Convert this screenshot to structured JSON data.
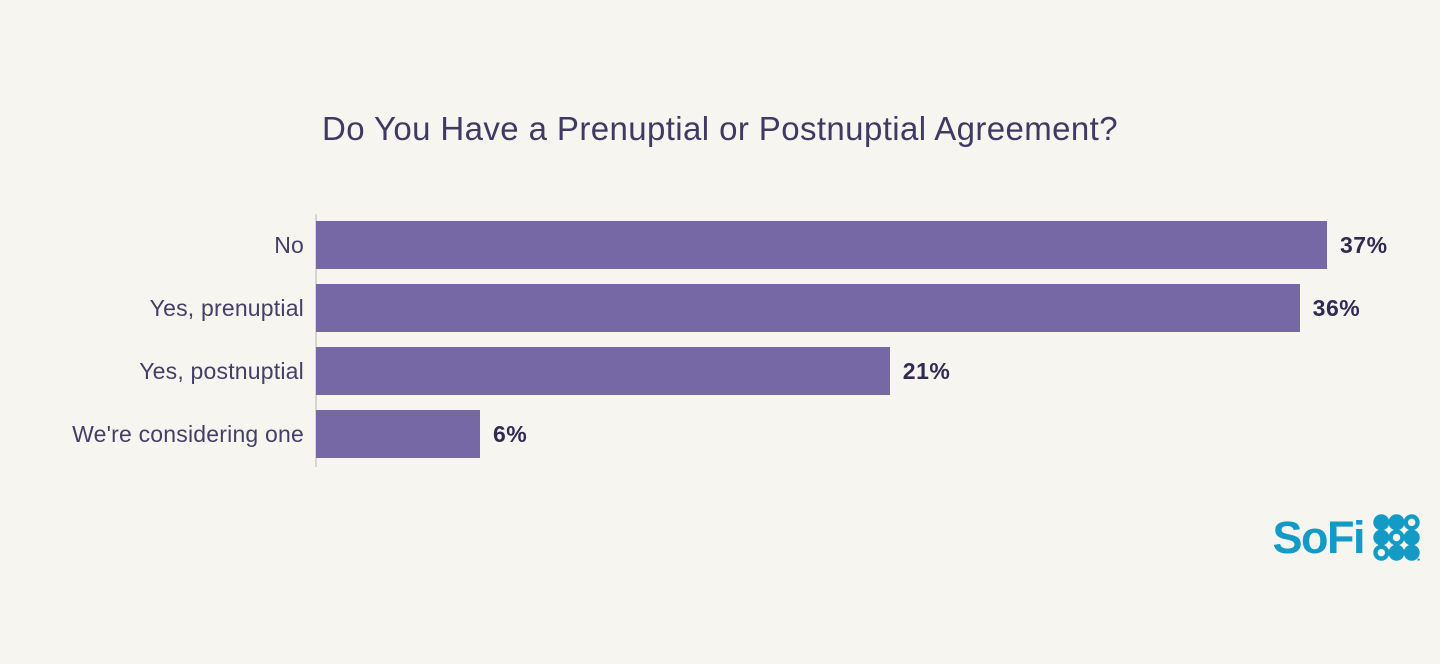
{
  "title": "Do You Have a Prenuptial or Postnuptial Agreement?",
  "chart_data": {
    "type": "bar",
    "orientation": "horizontal",
    "title": "Do You Have a Prenuptial or Postnuptial Agreement?",
    "categories": [
      "No",
      "Yes, prenuptial",
      "Yes, postnuptial",
      "We're considering one"
    ],
    "values": [
      37,
      36,
      21,
      6
    ],
    "value_labels": [
      "37%",
      "36%",
      "21%",
      "6%"
    ],
    "unit": "%",
    "xlim": [
      0,
      37
    ],
    "grid": false,
    "legend": false,
    "value_label_position": "outside-end",
    "bar_color": "#7568a4"
  },
  "branding": {
    "logo_text": "SoFi",
    "logo_icon": "sofi-dot-grid-icon",
    "logo_grid_pattern": [
      "filled",
      "filled",
      "ring",
      "filled",
      "ring",
      "filled",
      "ring",
      "filled",
      "filled"
    ]
  },
  "colors": {
    "background": "#f7f5f0",
    "title_text": "#3e3a63",
    "category_text": "#433f66",
    "value_text": "#2f2b52",
    "axis_line": "#d8d5cf",
    "bar": "#7568a4",
    "logo": "#149bc5"
  }
}
